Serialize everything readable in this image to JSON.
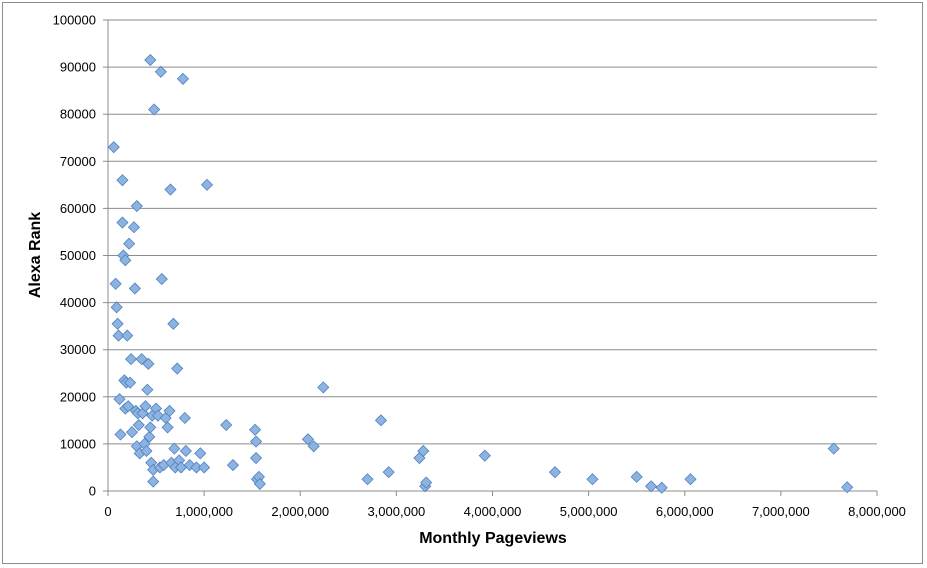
{
  "chart_data": {
    "type": "scatter",
    "title": "",
    "xlabel": "Monthly Pageviews",
    "ylabel": "Alexa Rank",
    "xlim": [
      0,
      8000000
    ],
    "ylim": [
      0,
      100000
    ],
    "x_ticks": [
      0,
      1000000,
      2000000,
      3000000,
      4000000,
      5000000,
      6000000,
      7000000,
      8000000
    ],
    "x_tick_labels": [
      "0",
      "1,000,000",
      "2,000,000",
      "3,000,000",
      "4,000,000",
      "5,000,000",
      "6,000,000",
      "7,000,000",
      "8,000,000"
    ],
    "y_ticks": [
      0,
      10000,
      20000,
      30000,
      40000,
      50000,
      60000,
      70000,
      80000,
      90000,
      100000
    ],
    "y_tick_labels": [
      "0",
      "10000",
      "20000",
      "30000",
      "40000",
      "50000",
      "60000",
      "70000",
      "80000",
      "90000",
      "100000"
    ],
    "grid": "horizontal",
    "legend": "none",
    "marker": "diamond",
    "marker_color": "#8db3e2",
    "marker_edge_color": "#4f81bd",
    "points": [
      [
        60000,
        73000
      ],
      [
        80000,
        44000
      ],
      [
        90000,
        39000
      ],
      [
        100000,
        35500
      ],
      [
        110000,
        33000
      ],
      [
        120000,
        19500
      ],
      [
        130000,
        12000
      ],
      [
        150000,
        66000
      ],
      [
        150000,
        57000
      ],
      [
        160000,
        50000
      ],
      [
        170000,
        23500
      ],
      [
        180000,
        49000
      ],
      [
        180000,
        17500
      ],
      [
        190000,
        23000
      ],
      [
        200000,
        33000
      ],
      [
        210000,
        18000
      ],
      [
        220000,
        52500
      ],
      [
        230000,
        23000
      ],
      [
        240000,
        28000
      ],
      [
        250000,
        12500
      ],
      [
        270000,
        56000
      ],
      [
        280000,
        43000
      ],
      [
        290000,
        17000
      ],
      [
        300000,
        60500
      ],
      [
        300000,
        9500
      ],
      [
        310000,
        16500
      ],
      [
        320000,
        14000
      ],
      [
        330000,
        8000
      ],
      [
        350000,
        28000
      ],
      [
        360000,
        16500
      ],
      [
        380000,
        10000
      ],
      [
        390000,
        18000
      ],
      [
        400000,
        8500
      ],
      [
        410000,
        21500
      ],
      [
        420000,
        27000
      ],
      [
        430000,
        11500
      ],
      [
        440000,
        91500
      ],
      [
        440000,
        13500
      ],
      [
        450000,
        6000
      ],
      [
        460000,
        16000
      ],
      [
        470000,
        2000
      ],
      [
        470000,
        4500
      ],
      [
        480000,
        81000
      ],
      [
        500000,
        17500
      ],
      [
        520000,
        16000
      ],
      [
        540000,
        5000
      ],
      [
        550000,
        89000
      ],
      [
        560000,
        45000
      ],
      [
        580000,
        5500
      ],
      [
        600000,
        15500
      ],
      [
        620000,
        13500
      ],
      [
        640000,
        17000
      ],
      [
        650000,
        64000
      ],
      [
        660000,
        6000
      ],
      [
        680000,
        35500
      ],
      [
        690000,
        9000
      ],
      [
        700000,
        5000
      ],
      [
        720000,
        26000
      ],
      [
        740000,
        6500
      ],
      [
        760000,
        5000
      ],
      [
        780000,
        87500
      ],
      [
        800000,
        15500
      ],
      [
        810000,
        8500
      ],
      [
        850000,
        5500
      ],
      [
        920000,
        5000
      ],
      [
        960000,
        8000
      ],
      [
        1000000,
        5000
      ],
      [
        1030000,
        65000
      ],
      [
        1230000,
        14000
      ],
      [
        1300000,
        5500
      ],
      [
        1530000,
        13000
      ],
      [
        1540000,
        10500
      ],
      [
        1540000,
        7000
      ],
      [
        1550000,
        2500
      ],
      [
        1570000,
        3000
      ],
      [
        1580000,
        1500
      ],
      [
        2080000,
        11000
      ],
      [
        2140000,
        9500
      ],
      [
        2240000,
        22000
      ],
      [
        2700000,
        2500
      ],
      [
        2840000,
        15000
      ],
      [
        2920000,
        4000
      ],
      [
        3240000,
        7000
      ],
      [
        3280000,
        8500
      ],
      [
        3300000,
        1000
      ],
      [
        3310000,
        1800
      ],
      [
        3920000,
        7500
      ],
      [
        4650000,
        4000
      ],
      [
        5040000,
        2500
      ],
      [
        5500000,
        3000
      ],
      [
        5650000,
        1000
      ],
      [
        5760000,
        700
      ],
      [
        6060000,
        2500
      ],
      [
        7550000,
        9000
      ],
      [
        7690000,
        800
      ]
    ]
  }
}
